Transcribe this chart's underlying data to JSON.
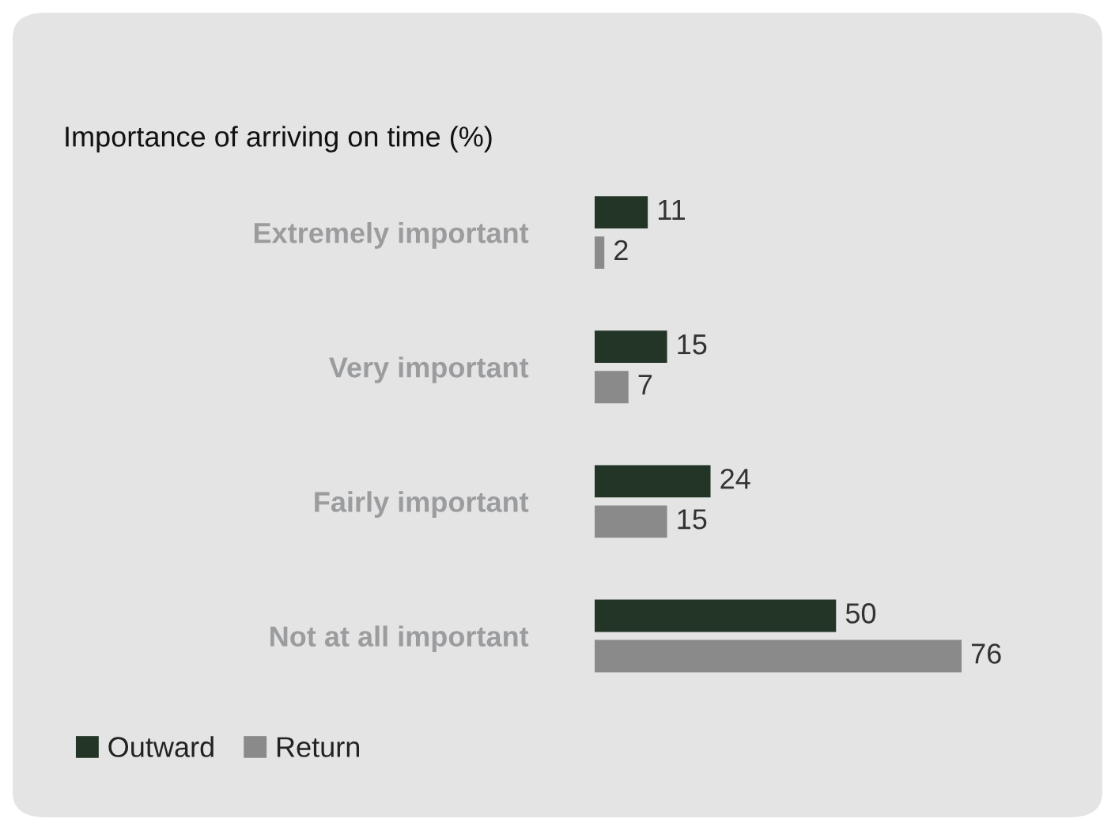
{
  "chart_data": {
    "type": "bar",
    "orientation": "horizontal",
    "title": "Importance of arriving on time (%)",
    "categories": [
      "Extremely important",
      "Very important",
      "Fairly important",
      "Not at all important"
    ],
    "series": [
      {
        "name": "Outward",
        "color": "#233526",
        "values": [
          11,
          15,
          24,
          50
        ]
      },
      {
        "name": "Return",
        "color": "#8a8a8a",
        "values": [
          2,
          7,
          15,
          76
        ]
      }
    ],
    "data_labels": true,
    "grid": false,
    "legend": "bottom left"
  }
}
